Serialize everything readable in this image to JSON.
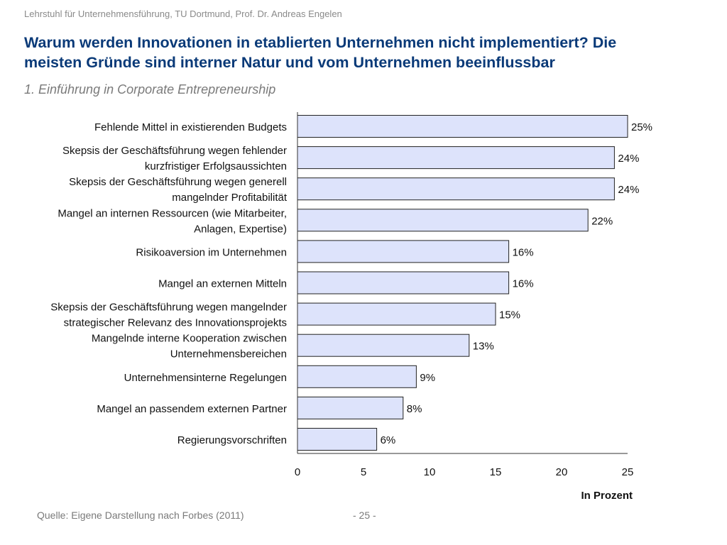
{
  "header": {
    "text": "Lehrstuhl für Unternehmensführung, TU Dortmund,  Prof. Dr. Andreas Engelen"
  },
  "title": {
    "line1": "Warum werden Innovationen in etablierten Unternehmen nicht implementiert? Die",
    "line2": "meisten Gründe sind interner Natur und vom Unternehmen beeinflussbar"
  },
  "subtitle": "1. Einführung in Corporate Entrepreneurship",
  "footer": {
    "source": "Quelle: Eigene Darstellung nach Forbes (2011)",
    "page": "- 25 -"
  },
  "colors": {
    "bar_fill": "#dde3fb",
    "bar_stroke": "#222222",
    "title": "#0a3a78"
  },
  "chart_data": {
    "type": "bar",
    "orientation": "horizontal",
    "categories": [
      [
        "Fehlende Mittel in existierenden Budgets"
      ],
      [
        "Skepsis der Geschäftsführung wegen fehlender",
        "kurzfristiger Erfolgsaussichten"
      ],
      [
        "Skepsis der Geschäftsführung wegen generell",
        "mangelnder Profitabilität"
      ],
      [
        "Mangel an internen Ressourcen (wie Mitarbeiter,",
        "Anlagen, Expertise)"
      ],
      [
        "Risikoaversion im Unternehmen"
      ],
      [
        "Mangel an externen Mitteln"
      ],
      [
        "Skepsis der Geschäftsführung wegen mangelnder",
        "strategischer Relevanz des Innovationsprojekts"
      ],
      [
        "Mangelnde interne Kooperation zwischen",
        "Unternehmensbereichen"
      ],
      [
        "Unternehmensinterne Regelungen"
      ],
      [
        "Mangel an passendem externen Partner"
      ],
      [
        "Regierungsvorschriften"
      ]
    ],
    "values": [
      25,
      24,
      24,
      22,
      16,
      16,
      15,
      13,
      9,
      8,
      6
    ],
    "value_labels": [
      "25%",
      "24%",
      "24%",
      "22%",
      "16%",
      "16%",
      "15%",
      "13%",
      "9%",
      "8%",
      "6%"
    ],
    "xlim": [
      0,
      25
    ],
    "xticks": [
      "0",
      "5",
      "10",
      "15",
      "20",
      "25"
    ],
    "xlabel": "In Prozent",
    "grid": false,
    "legend": "none"
  }
}
